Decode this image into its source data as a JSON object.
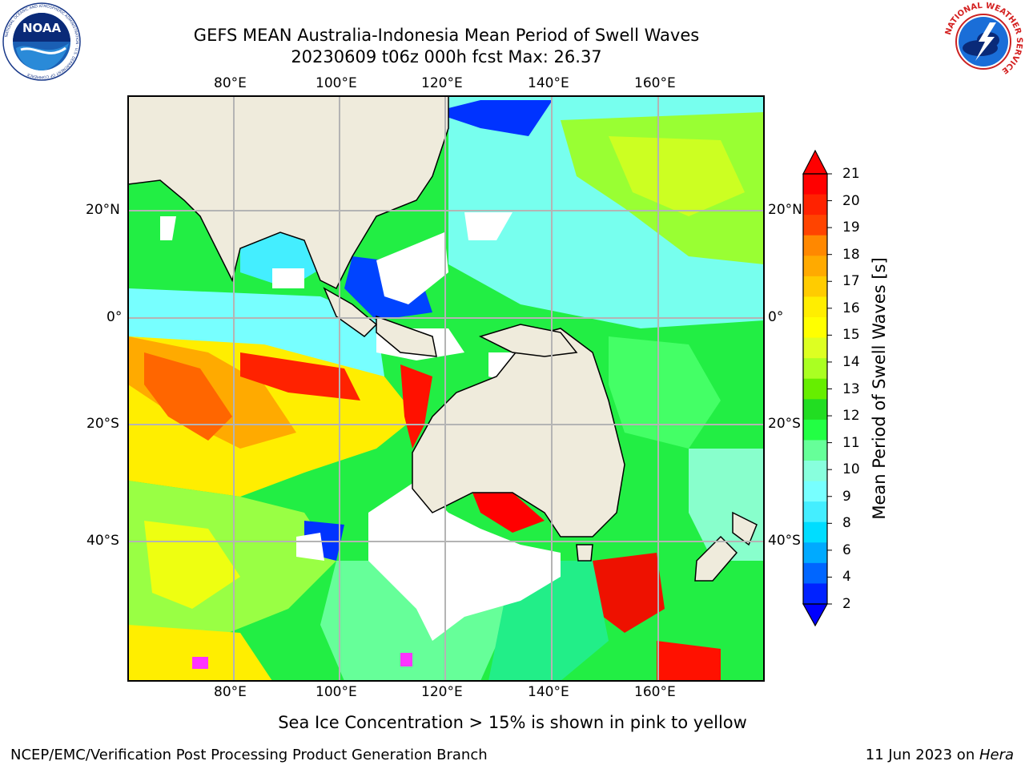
{
  "header": {
    "title_line1": "GEFS MEAN Australia-Indonesia Mean Period of Swell Waves",
    "title_line2": "20230609 t06z 000h fcst   Max: 26.37"
  },
  "logos": {
    "left": {
      "icon": "noaa-logo",
      "text": "NOAA",
      "ring_text": "NATIONAL OCEANIC AND ATMOSPHERIC ADMINISTRATION · U.S. DEPARTMENT OF COMMERCE"
    },
    "right": {
      "icon": "nws-logo",
      "ring_text": "NATIONAL WEATHER SERVICE"
    }
  },
  "map": {
    "lon_labels": [
      "80°E",
      "100°E",
      "120°E",
      "140°E",
      "160°E"
    ],
    "lat_labels": [
      "20°N",
      "0°",
      "20°S",
      "40°S"
    ],
    "land_color": "#efebdc",
    "grid_color": "#b4b4b4"
  },
  "colorbar": {
    "label": "Mean Period of Swell Waves [s]",
    "ticks": [
      "21",
      "20",
      "19",
      "18",
      "17",
      "16",
      "15",
      "14",
      "13",
      "12",
      "11",
      "10",
      "9",
      "8",
      "6",
      "4",
      "2"
    ],
    "colors": [
      "#ff0000",
      "#ff2200",
      "#ff4400",
      "#ff8800",
      "#ffaa00",
      "#ffcc00",
      "#ffee00",
      "#ffff00",
      "#ddff22",
      "#aaff22",
      "#66ee00",
      "#22dd22",
      "#22ff44",
      "#66ff99",
      "#88ffdd",
      "#77ffff",
      "#44eeff",
      "#00ddff",
      "#00aaff",
      "#0066ff",
      "#0022ff"
    ]
  },
  "footer": {
    "ice_note": "Sea Ice Concentration > 15% is shown in pink to yellow",
    "left": "NCEP/EMC/Verification Post Processing Product Generation Branch",
    "right_prefix": "11 Jun 2023 on ",
    "right_machine": "Hera"
  }
}
